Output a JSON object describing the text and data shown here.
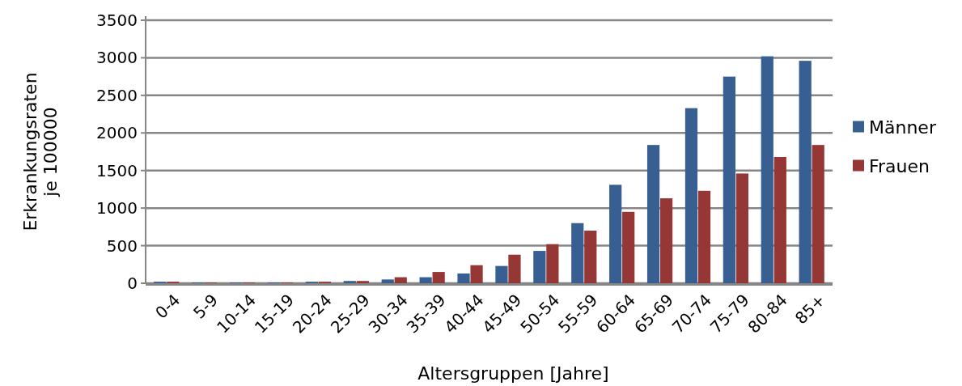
{
  "chart_data": {
    "type": "bar",
    "xlabel": "Altersgruppen [Jahre]",
    "ylabel": "Erkrankungsraten je 100000",
    "categories": [
      "0-4",
      "5-9",
      "10-14",
      "15-19",
      "20-24",
      "25-29",
      "30-34",
      "35-39",
      "40-44",
      "45-49",
      "50-54",
      "55-59",
      "60-64",
      "65-69",
      "70-74",
      "75-79",
      "80-84",
      "85+"
    ],
    "series": [
      {
        "name": "Männer",
        "color": "#375f91",
        "values": [
          20,
          10,
          10,
          10,
          20,
          30,
          50,
          80,
          130,
          230,
          430,
          800,
          1310,
          1840,
          2330,
          2750,
          3020,
          2960
        ]
      },
      {
        "name": "Frauen",
        "color": "#953735",
        "values": [
          20,
          10,
          10,
          10,
          20,
          30,
          80,
          150,
          240,
          380,
          520,
          700,
          950,
          1130,
          1230,
          1460,
          1680,
          1840
        ]
      }
    ],
    "ylim": [
      0,
      3500
    ],
    "yticks": [
      0,
      500,
      1000,
      1500,
      2000,
      2500,
      3000,
      3500
    ],
    "grid": "y",
    "legend": "right"
  }
}
